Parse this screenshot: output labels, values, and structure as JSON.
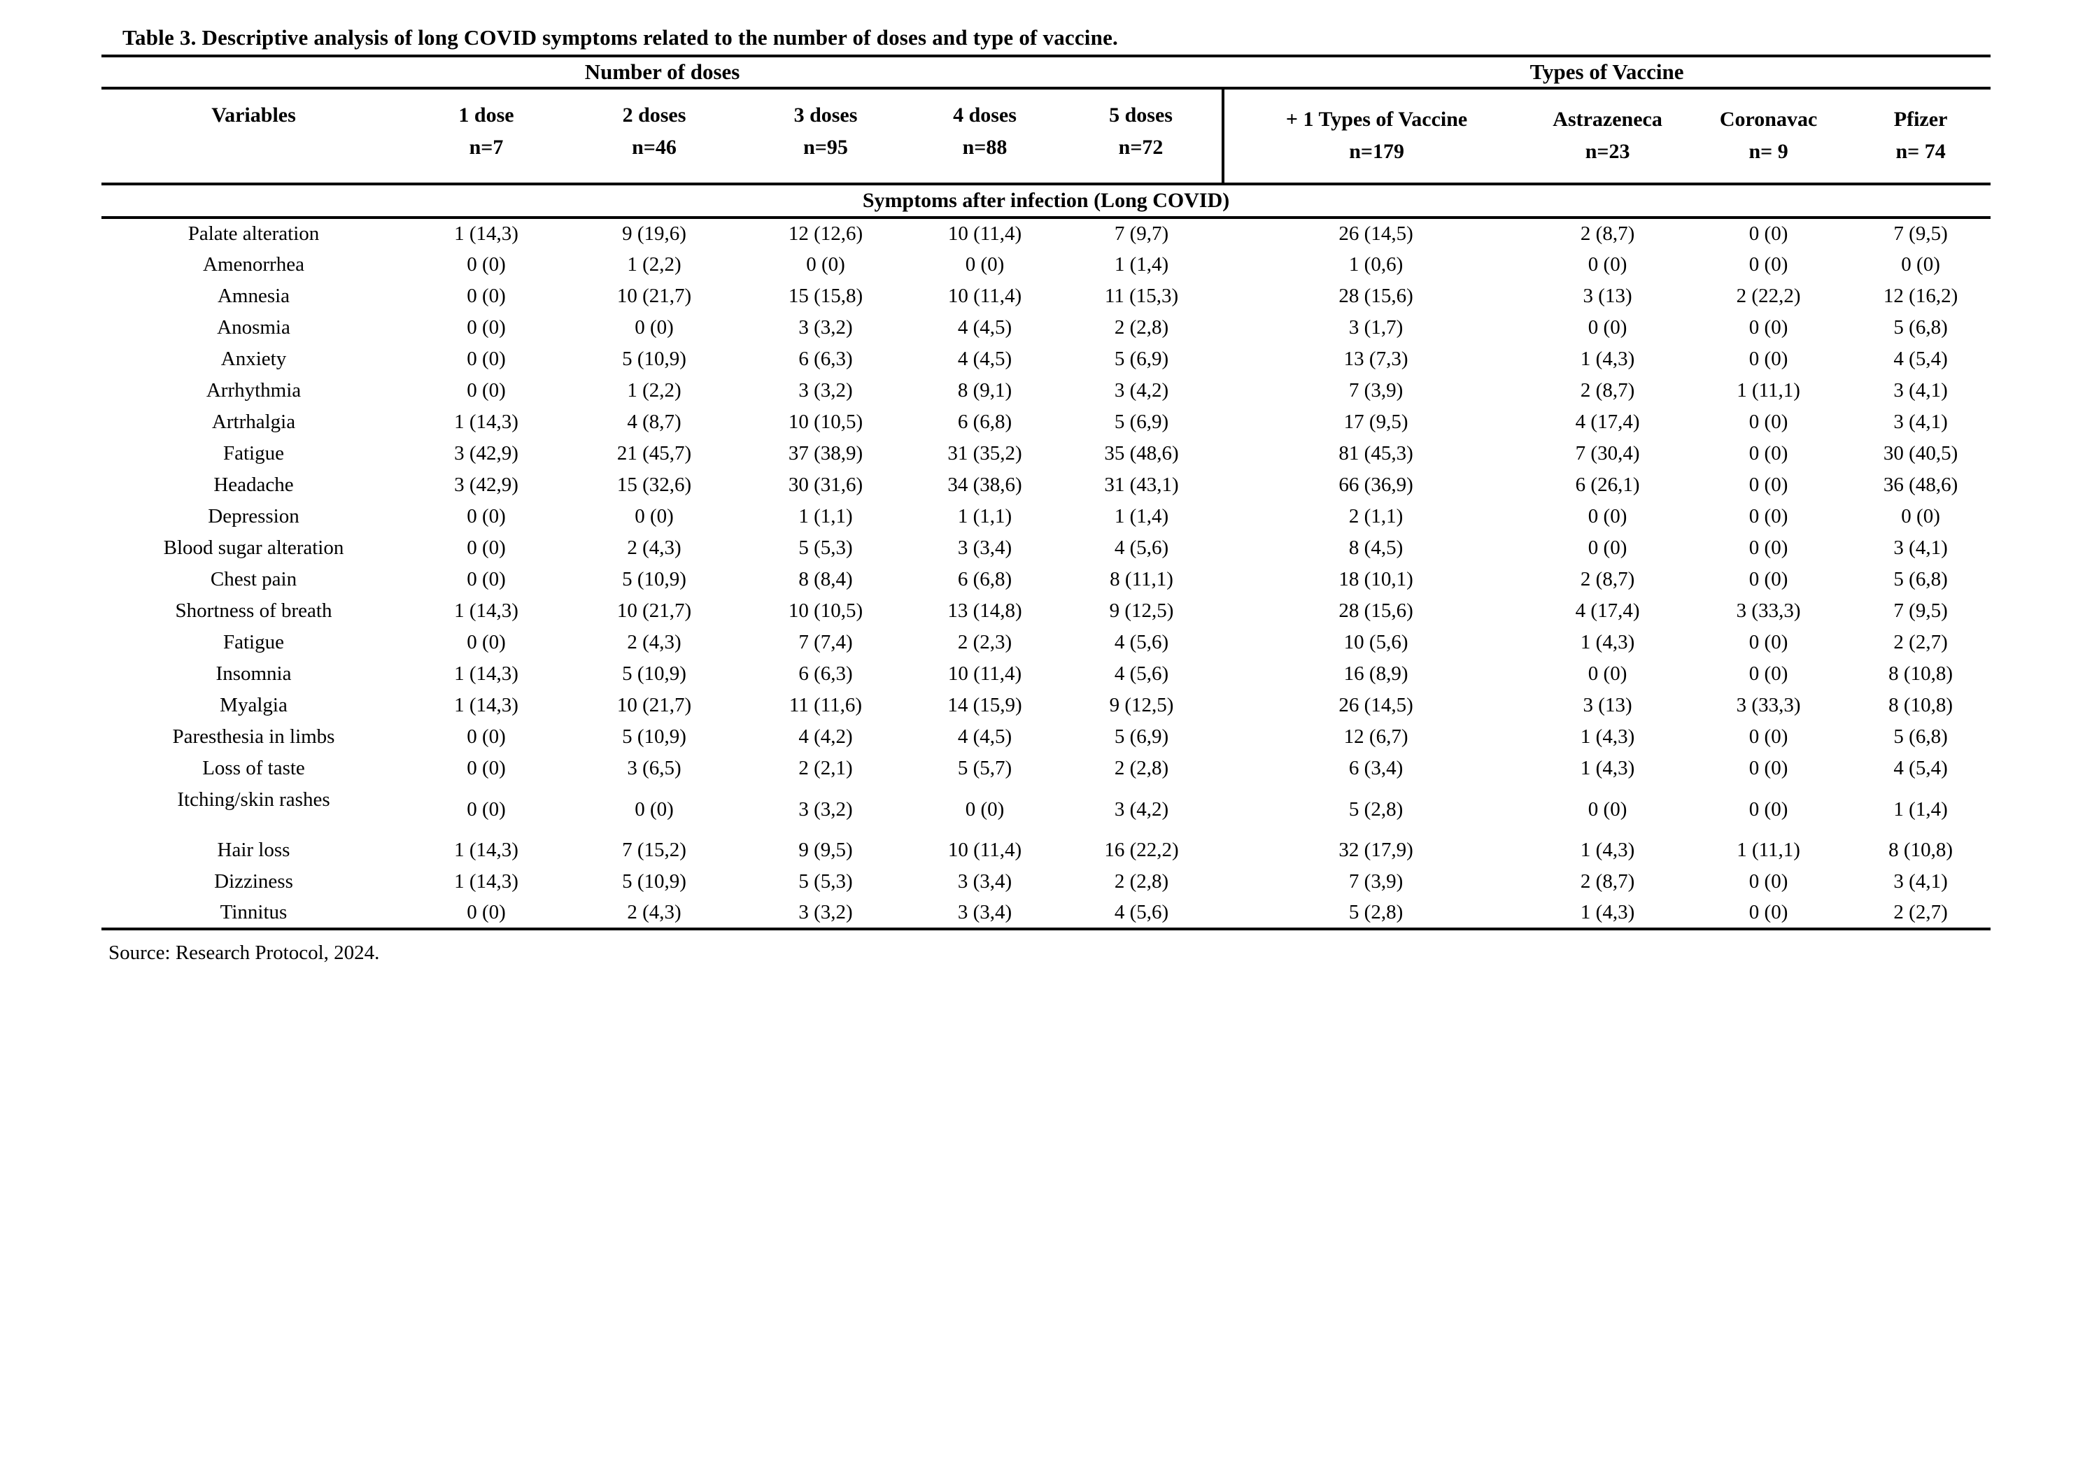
{
  "title": "Table 3. Descriptive analysis of long COVID symptoms related to the number of doses and type of vaccine.",
  "table": {
    "group_headers": [
      {
        "label": "Number of doses",
        "span": 6
      },
      {
        "label": "Types of Vaccine",
        "span": 4
      }
    ],
    "columns": [
      {
        "label": "Variables",
        "sub": ""
      },
      {
        "label": "1 dose",
        "sub": "n=7"
      },
      {
        "label": "2 doses",
        "sub": "n=46"
      },
      {
        "label": "3 doses",
        "sub": "n=95"
      },
      {
        "label": "4 doses",
        "sub": "n=88"
      },
      {
        "label": "5 doses",
        "sub": "n=72"
      },
      {
        "label": "+ 1 Types of Vaccine",
        "sub": "n=179"
      },
      {
        "label": "Astrazeneca",
        "sub": "n=23"
      },
      {
        "label": "Coronavac",
        "sub": "n= 9"
      },
      {
        "label": "Pfizer",
        "sub": "n= 74"
      }
    ],
    "section_header": "Symptoms after infection (Long COVID)",
    "rows": [
      [
        "Palate alteration",
        "1 (14,3)",
        "9 (19,6)",
        "12 (12,6)",
        "10 (11,4)",
        "7 (9,7)",
        "26 (14,5)",
        "2 (8,7)",
        "0 (0)",
        "7 (9,5)"
      ],
      [
        "Amenorrhea",
        "0 (0)",
        "1 (2,2)",
        "0 (0)",
        "0 (0)",
        "1 (1,4)",
        "1 (0,6)",
        "0 (0)",
        "0 (0)",
        "0 (0)"
      ],
      [
        "Amnesia",
        "0 (0)",
        "10 (21,7)",
        "15 (15,8)",
        "10 (11,4)",
        "11 (15,3)",
        "28 (15,6)",
        "3 (13)",
        "2 (22,2)",
        "12 (16,2)"
      ],
      [
        "Anosmia",
        "0 (0)",
        "0 (0)",
        "3 (3,2)",
        "4 (4,5)",
        "2 (2,8)",
        "3 (1,7)",
        "0 (0)",
        "0 (0)",
        "5 (6,8)"
      ],
      [
        "Anxiety",
        "0 (0)",
        "5 (10,9)",
        "6 (6,3)",
        "4 (4,5)",
        "5 (6,9)",
        "13 (7,3)",
        "1 (4,3)",
        "0 (0)",
        "4 (5,4)"
      ],
      [
        "Arrhythmia",
        "0 (0)",
        "1 (2,2)",
        "3 (3,2)",
        "8 (9,1)",
        "3 (4,2)",
        "7 (3,9)",
        "2 (8,7)",
        "1 (11,1)",
        "3 (4,1)"
      ],
      [
        "Artrhalgia",
        "1 (14,3)",
        "4 (8,7)",
        "10 (10,5)",
        "6 (6,8)",
        "5 (6,9)",
        "17 (9,5)",
        "4 (17,4)",
        "0 (0)",
        "3 (4,1)"
      ],
      [
        "Fatigue",
        "3 (42,9)",
        "21 (45,7)",
        "37 (38,9)",
        "31 (35,2)",
        "35 (48,6)",
        "81 (45,3)",
        "7 (30,4)",
        "0 (0)",
        "30 (40,5)"
      ],
      [
        "Headache",
        "3 (42,9)",
        "15 (32,6)",
        "30 (31,6)",
        "34 (38,6)",
        "31 (43,1)",
        "66 (36,9)",
        "6 (26,1)",
        "0 (0)",
        "36 (48,6)"
      ],
      [
        "Depression",
        "0 (0)",
        "0 (0)",
        "1 (1,1)",
        "1 (1,1)",
        "1 (1,4)",
        "2 (1,1)",
        "0 (0)",
        "0 (0)",
        "0 (0)"
      ],
      [
        "Blood sugar alteration",
        "0 (0)",
        "2 (4,3)",
        "5 (5,3)",
        "3 (3,4)",
        "4 (5,6)",
        "8 (4,5)",
        "0 (0)",
        "0 (0)",
        "3 (4,1)"
      ],
      [
        "Chest pain",
        "0 (0)",
        "5 (10,9)",
        "8 (8,4)",
        "6 (6,8)",
        "8 (11,1)",
        "18 (10,1)",
        "2 (8,7)",
        "0 (0)",
        "5 (6,8)"
      ],
      [
        "Shortness of breath",
        "1 (14,3)",
        "10 (21,7)",
        "10 (10,5)",
        "13 (14,8)",
        "9 (12,5)",
        "28 (15,6)",
        "4 (17,4)",
        "3 (33,3)",
        "7 (9,5)"
      ],
      [
        "Fatigue",
        "0 (0)",
        "2 (4,3)",
        "7 (7,4)",
        "2 (2,3)",
        "4 (5,6)",
        "10 (5,6)",
        "1 (4,3)",
        "0 (0)",
        "2 (2,7)"
      ],
      [
        "Insomnia",
        "1 (14,3)",
        "5 (10,9)",
        "6 (6,3)",
        "10 (11,4)",
        "4 (5,6)",
        "16 (8,9)",
        "0 (0)",
        "0 (0)",
        "8 (10,8)"
      ],
      [
        "Myalgia",
        "1 (14,3)",
        "10 (21,7)",
        "11 (11,6)",
        "14 (15,9)",
        "9 (12,5)",
        "26 (14,5)",
        "3 (13)",
        "3 (33,3)",
        "8 (10,8)"
      ],
      [
        "Paresthesia in limbs",
        "0 (0)",
        "5 (10,9)",
        "4 (4,2)",
        "4 (4,5)",
        "5 (6,9)",
        "12 (6,7)",
        "1 (4,3)",
        "0 (0)",
        "5 (6,8)"
      ],
      [
        "Loss of taste",
        "0 (0)",
        "3 (6,5)",
        "2 (2,1)",
        "5 (5,7)",
        "2 (2,8)",
        "6 (3,4)",
        "1 (4,3)",
        "0 (0)",
        "4 (5,4)"
      ],
      [
        "Itching/skin rashes",
        "0 (0)",
        "0 (0)",
        "3 (3,2)",
        "0 (0)",
        "3 (4,2)",
        "5 (2,8)",
        "0 (0)",
        "0 (0)",
        "1 (1,4)"
      ],
      [
        "Hair loss",
        "1 (14,3)",
        "7 (15,2)",
        "9 (9,5)",
        "10 (11,4)",
        "16 (22,2)",
        "32 (17,9)",
        "1 (4,3)",
        "1 (11,1)",
        "8 (10,8)"
      ],
      [
        "Dizziness",
        "1 (14,3)",
        "5 (10,9)",
        "5 (5,3)",
        "3 (3,4)",
        "2 (2,8)",
        "7 (3,9)",
        "2 (8,7)",
        "0 (0)",
        "3 (4,1)"
      ],
      [
        "Tinnitus",
        "0 (0)",
        "2 (4,3)",
        "3 (3,2)",
        "3 (3,4)",
        "4 (5,6)",
        "5 (2,8)",
        "1 (4,3)",
        "0 (0)",
        "2 (2,7)"
      ]
    ],
    "layout": {
      "tall_rows": [
        18
      ]
    }
  },
  "source": "Source: Research Protocol, 2024."
}
